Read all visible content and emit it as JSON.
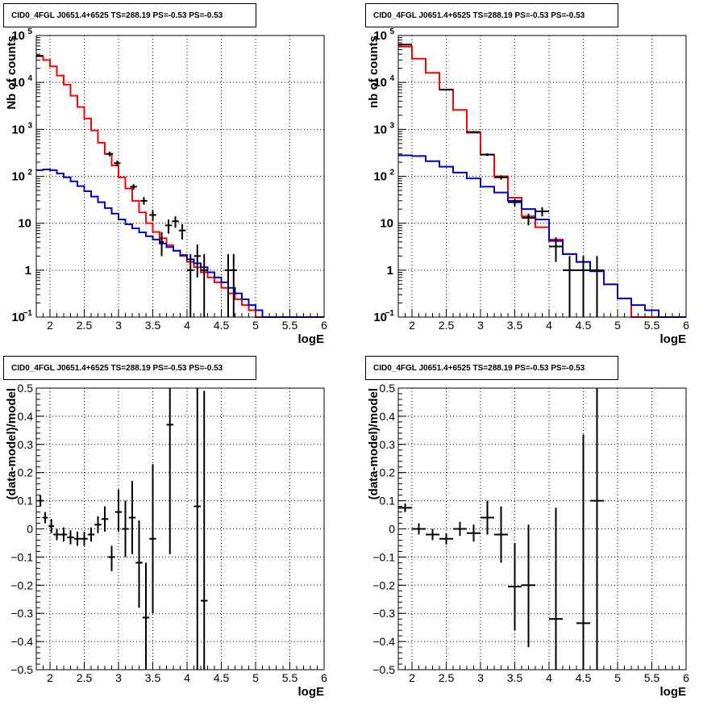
{
  "chart_data": [
    {
      "id": "tl",
      "type": "step-histogram",
      "title": "CID0_4FGL J0651.4+6525 TS=288.19 PS=-0.53 PS=-0.53",
      "xlabel": "logE",
      "ylabel": "Nb of counts",
      "xlim": [
        1.8,
        6.0
      ],
      "ylim": [
        0.1,
        100000
      ],
      "yscale": "log",
      "grid": true,
      "x_ticks": [
        "2",
        "2.5",
        "3",
        "3.5",
        "4",
        "4.5",
        "5",
        "5.5",
        "6"
      ],
      "y_ticks": [
        {
          "value": 0.1,
          "label": "10",
          "sup": "−1"
        },
        {
          "value": 1,
          "label": "1"
        },
        {
          "value": 10,
          "label": "10"
        },
        {
          "value": 100,
          "label": "10",
          "sup": "2"
        },
        {
          "value": 1000,
          "label": "10",
          "sup": "3"
        },
        {
          "value": 10000,
          "label": "10",
          "sup": "4"
        },
        {
          "value": 100000,
          "label": "10",
          "sup": "5"
        }
      ],
      "series": [
        {
          "color": "#ff0000",
          "style": "step",
          "edges": [
            1.8,
            1.9,
            2.0,
            2.1,
            2.2,
            2.3,
            2.4,
            2.5,
            2.6,
            2.7,
            2.8,
            2.9,
            3.0,
            3.1,
            3.2,
            3.3,
            3.4,
            3.5,
            3.6,
            3.7,
            3.8,
            3.9,
            4.0,
            4.1,
            4.2,
            4.3,
            4.4,
            4.5,
            4.6,
            4.7,
            4.8,
            4.9,
            5.0,
            5.1,
            5.2,
            5.3,
            5.4,
            5.5,
            5.6,
            5.7,
            5.8,
            5.9,
            6.0
          ],
          "values": [
            36000,
            30000,
            22000,
            14000,
            9000,
            5200,
            3000,
            1700,
            950,
            520,
            300,
            170,
            95,
            55,
            30,
            17,
            10,
            6.5,
            4.8,
            3.4,
            2.6,
            2.0,
            1.5,
            1.15,
            0.9,
            0.7,
            0.55,
            0.42,
            0.32,
            0.24,
            0.18,
            0.14,
            0.1,
            0.1,
            0.1,
            0.1,
            0.1,
            0.1,
            0.1,
            0.1,
            0.1,
            0.1
          ]
        },
        {
          "color": "#0000cc",
          "style": "step",
          "edges": [
            1.8,
            1.9,
            2.0,
            2.1,
            2.2,
            2.3,
            2.4,
            2.5,
            2.6,
            2.7,
            2.8,
            2.9,
            3.0,
            3.1,
            3.2,
            3.3,
            3.4,
            3.5,
            3.6,
            3.7,
            3.8,
            3.9,
            4.0,
            4.1,
            4.2,
            4.3,
            4.4,
            4.5,
            4.6,
            4.7,
            4.8,
            4.9,
            5.0,
            5.1,
            5.2,
            5.3,
            5.4,
            5.5,
            5.6,
            5.7,
            5.8,
            5.9,
            6.0
          ],
          "values": [
            135,
            140,
            135,
            115,
            95,
            78,
            62,
            48,
            37,
            28,
            21,
            16,
            12,
            9.5,
            7.8,
            6.4,
            5.3,
            4.5,
            3.7,
            3.1,
            2.6,
            2.1,
            1.7,
            1.4,
            1.15,
            0.9,
            0.7,
            0.55,
            0.42,
            0.32,
            0.24,
            0.18,
            0.14,
            0.1,
            0.1,
            0.1,
            0.1,
            0.1,
            0.1,
            0.1,
            0.1,
            0.1
          ]
        }
      ],
      "points": [
        {
          "x": 1.85,
          "y": 37000,
          "xerr": 0.05,
          "ylo": 36600,
          "yhi": 37400
        },
        {
          "x": 2.87,
          "y": 300,
          "xerr": 0.05,
          "ylo": 265,
          "yhi": 335
        },
        {
          "x": 2.98,
          "y": 190,
          "xerr": 0.05,
          "ylo": 165,
          "yhi": 215
        },
        {
          "x": 3.22,
          "y": 60,
          "xerr": 0.05,
          "ylo": 52,
          "yhi": 68
        },
        {
          "x": 3.37,
          "y": 30,
          "xerr": 0.05,
          "ylo": 25,
          "yhi": 36
        },
        {
          "x": 3.5,
          "y": 15,
          "xerr": 0.05,
          "ylo": 11,
          "yhi": 19
        },
        {
          "x": 3.63,
          "y": 4,
          "xerr": 0.03,
          "ylo": 2,
          "yhi": 6.5
        },
        {
          "x": 3.73,
          "y": 9,
          "xerr": 0.05,
          "ylo": 6,
          "yhi": 12
        },
        {
          "x": 3.83,
          "y": 11,
          "xerr": 0.05,
          "ylo": 8,
          "yhi": 14
        },
        {
          "x": 3.93,
          "y": 7,
          "xerr": 0.05,
          "ylo": 4.5,
          "yhi": 9.5
        },
        {
          "x": 4.05,
          "y": 1,
          "xerr": 0.05,
          "ylo": 0.1,
          "yhi": 2.2
        },
        {
          "x": 4.15,
          "y": 2,
          "xerr": 0.05,
          "ylo": 0.7,
          "yhi": 3.5
        },
        {
          "x": 4.25,
          "y": 1,
          "xerr": 0.05,
          "ylo": 0.1,
          "yhi": 2.2
        },
        {
          "x": 4.6,
          "y": 1,
          "xerr": 0.05,
          "ylo": 0.1,
          "yhi": 2.2
        },
        {
          "x": 4.68,
          "y": 1,
          "xerr": 0.05,
          "ylo": 0.1,
          "yhi": 2.2
        }
      ]
    },
    {
      "id": "tr",
      "type": "step-histogram",
      "title": "CID0_4FGL J0651.4+6525 TS=288.19 PS=-0.53 PS=-0.53",
      "xlabel": "logE",
      "ylabel": "nb of counts",
      "xlim": [
        1.8,
        6.0
      ],
      "ylim": [
        0.1,
        100000
      ],
      "yscale": "log",
      "grid": true,
      "x_ticks": [
        "2",
        "2.5",
        "3",
        "3.5",
        "4",
        "4.5",
        "5",
        "5.5",
        "6"
      ],
      "y_ticks": [
        {
          "value": 0.1,
          "label": "10",
          "sup": "−1"
        },
        {
          "value": 1,
          "label": "1"
        },
        {
          "value": 10,
          "label": "10"
        },
        {
          "value": 100,
          "label": "10",
          "sup": "2"
        },
        {
          "value": 1000,
          "label": "10",
          "sup": "3"
        },
        {
          "value": 10000,
          "label": "10",
          "sup": "4"
        },
        {
          "value": 100000,
          "label": "10",
          "sup": "5"
        }
      ],
      "series": [
        {
          "color": "#ff0000",
          "style": "step",
          "edges": [
            1.8,
            2.0,
            2.2,
            2.4,
            2.6,
            2.8,
            3.0,
            3.2,
            3.4,
            3.6,
            3.8,
            4.0,
            4.2,
            4.4,
            4.6,
            4.8,
            5.0,
            5.2,
            5.4,
            5.6,
            5.8,
            6.0
          ],
          "values": [
            58000,
            32000,
            16000,
            7000,
            2600,
            850,
            290,
            100,
            35,
            14,
            8.2,
            4.5,
            2.2,
            1.5,
            0.95,
            0.5,
            0.25,
            0.1,
            0.1,
            0.1,
            0.1
          ]
        },
        {
          "color": "#0000cc",
          "style": "step",
          "edges": [
            1.8,
            2.0,
            2.2,
            2.4,
            2.6,
            2.8,
            3.0,
            3.2,
            3.4,
            3.6,
            3.8,
            4.0,
            4.2,
            4.4,
            4.6,
            4.8,
            5.0,
            5.2,
            5.4,
            5.6,
            5.8,
            6.0
          ],
          "values": [
            280,
            270,
            210,
            160,
            120,
            90,
            60,
            45,
            30,
            20,
            12,
            4.2,
            2.2,
            1.5,
            0.95,
            0.5,
            0.25,
            0.18,
            0.14,
            0.1,
            0.1
          ]
        }
      ],
      "points": [
        {
          "x": 1.9,
          "y": 64000,
          "xerr": 0.1,
          "ylo": 63500,
          "yhi": 64500
        },
        {
          "x": 2.5,
          "y": 7000,
          "xerr": 0.1,
          "ylo": 6800,
          "yhi": 7200
        },
        {
          "x": 2.9,
          "y": 880,
          "xerr": 0.1,
          "ylo": 840,
          "yhi": 920
        },
        {
          "x": 3.1,
          "y": 290,
          "xerr": 0.1,
          "ylo": 270,
          "yhi": 310
        },
        {
          "x": 3.3,
          "y": 95,
          "xerr": 0.1,
          "ylo": 85,
          "yhi": 105
        },
        {
          "x": 3.5,
          "y": 28,
          "xerr": 0.1,
          "ylo": 23,
          "yhi": 33
        },
        {
          "x": 3.7,
          "y": 13,
          "xerr": 0.1,
          "ylo": 9,
          "yhi": 16
        },
        {
          "x": 3.9,
          "y": 18,
          "xerr": 0.1,
          "ylo": 14,
          "yhi": 22
        },
        {
          "x": 4.1,
          "y": 3.2,
          "xerr": 0.1,
          "ylo": 1.5,
          "yhi": 5
        },
        {
          "x": 4.5,
          "y": 1,
          "xerr": 0.1,
          "ylo": 0.1,
          "yhi": 2
        },
        {
          "x": 4.7,
          "y": 1,
          "xerr": 0.1,
          "ylo": 0.1,
          "yhi": 2
        },
        {
          "x": 4.3,
          "y": 1,
          "xerr": 0.1,
          "ylo": 0.1,
          "yhi": 2
        }
      ]
    },
    {
      "id": "bl",
      "type": "scatter-errorbars",
      "title": "CID0_4FGL J0651.4+6525 TS=288.19 PS=-0.53 PS=-0.53",
      "xlabel": "logE",
      "ylabel": "(data-model)/model",
      "xlim": [
        1.8,
        6.0
      ],
      "ylim": [
        -0.5,
        0.5
      ],
      "yscale": "linear",
      "grid": true,
      "x_ticks": [
        "2",
        "2.5",
        "3",
        "3.5",
        "4",
        "4.5",
        "5",
        "5.5",
        "6"
      ],
      "y_ticks": [
        "0.5",
        "0.4",
        "0.3",
        "0.2",
        "0.1",
        "0",
        "−0.1",
        "−0.2",
        "−0.3",
        "−0.4",
        "−0.5"
      ],
      "points": [
        {
          "x": 1.86,
          "y": 0.1,
          "xerr": 0.04,
          "ylo": 0.08,
          "yhi": 0.12
        },
        {
          "x": 1.93,
          "y": 0.04,
          "xerr": 0.04,
          "ylo": 0.02,
          "yhi": 0.06
        },
        {
          "x": 2.02,
          "y": 0.01,
          "xerr": 0.04,
          "ylo": -0.015,
          "yhi": 0.035
        },
        {
          "x": 2.1,
          "y": -0.02,
          "xerr": 0.05,
          "ylo": -0.04,
          "yhi": 0.0
        },
        {
          "x": 2.2,
          "y": -0.02,
          "xerr": 0.05,
          "ylo": -0.045,
          "yhi": 0.005
        },
        {
          "x": 2.3,
          "y": -0.03,
          "xerr": 0.05,
          "ylo": -0.055,
          "yhi": -0.005
        },
        {
          "x": 2.4,
          "y": -0.035,
          "xerr": 0.05,
          "ylo": -0.06,
          "yhi": -0.01
        },
        {
          "x": 2.5,
          "y": -0.035,
          "xerr": 0.05,
          "ylo": -0.06,
          "yhi": -0.01
        },
        {
          "x": 2.6,
          "y": -0.02,
          "xerr": 0.05,
          "ylo": -0.045,
          "yhi": 0.005
        },
        {
          "x": 2.7,
          "y": 0.015,
          "xerr": 0.05,
          "ylo": -0.015,
          "yhi": 0.045
        },
        {
          "x": 2.8,
          "y": 0.035,
          "xerr": 0.05,
          "ylo": -0.01,
          "yhi": 0.08
        },
        {
          "x": 2.9,
          "y": -0.1,
          "xerr": 0.05,
          "ylo": -0.15,
          "yhi": -0.06
        },
        {
          "x": 3.0,
          "y": 0.06,
          "xerr": 0.05,
          "ylo": -0.01,
          "yhi": 0.14
        },
        {
          "x": 3.1,
          "y": 0.0,
          "xerr": 0.05,
          "ylo": -0.1,
          "yhi": 0.1
        },
        {
          "x": 3.2,
          "y": 0.04,
          "xerr": 0.05,
          "ylo": -0.09,
          "yhi": 0.17
        },
        {
          "x": 3.3,
          "y": -0.12,
          "xerr": 0.05,
          "ylo": -0.28,
          "yhi": 0.03
        },
        {
          "x": 3.4,
          "y": -0.315,
          "xerr": 0.05,
          "ylo": -0.5,
          "yhi": -0.12
        },
        {
          "x": 3.5,
          "y": -0.035,
          "xerr": 0.05,
          "ylo": -0.3,
          "yhi": 0.23
        },
        {
          "x": 3.75,
          "y": 0.37,
          "xerr": 0.05,
          "ylo": -0.09,
          "yhi": 0.5
        },
        {
          "x": 4.15,
          "y": 0.08,
          "xerr": 0.05,
          "ylo": -0.5,
          "yhi": 0.5
        },
        {
          "x": 4.25,
          "y": -0.255,
          "xerr": 0.05,
          "ylo": -0.5,
          "yhi": 0.49
        }
      ]
    },
    {
      "id": "br",
      "type": "scatter-errorbars",
      "title": "CID0_4FGL J0651.4+6525 TS=288.19 PS=-0.53 PS=-0.53",
      "xlabel": "logE",
      "ylabel": "(data-model)/model",
      "xlim": [
        1.8,
        6.0
      ],
      "ylim": [
        -0.5,
        0.5
      ],
      "yscale": "linear",
      "grid": true,
      "x_ticks": [
        "2",
        "2.5",
        "3",
        "3.5",
        "4",
        "4.5",
        "5",
        "5.5",
        "6"
      ],
      "y_ticks": [
        "0.5",
        "0.4",
        "0.3",
        "0.2",
        "0.1",
        "0",
        "−0.1",
        "−0.2",
        "−0.3",
        "−0.4",
        "−0.5"
      ],
      "points": [
        {
          "x": 1.9,
          "y": 0.075,
          "xerr": 0.1,
          "ylo": 0.06,
          "yhi": 0.09
        },
        {
          "x": 2.1,
          "y": 0.0,
          "xerr": 0.1,
          "ylo": -0.02,
          "yhi": 0.02
        },
        {
          "x": 2.3,
          "y": -0.02,
          "xerr": 0.1,
          "ylo": -0.04,
          "yhi": 0.0
        },
        {
          "x": 2.5,
          "y": -0.035,
          "xerr": 0.1,
          "ylo": -0.055,
          "yhi": -0.015
        },
        {
          "x": 2.7,
          "y": 0.0,
          "xerr": 0.1,
          "ylo": -0.025,
          "yhi": 0.025
        },
        {
          "x": 2.9,
          "y": -0.015,
          "xerr": 0.1,
          "ylo": -0.045,
          "yhi": 0.015
        },
        {
          "x": 3.1,
          "y": 0.04,
          "xerr": 0.1,
          "ylo": -0.02,
          "yhi": 0.1
        },
        {
          "x": 3.3,
          "y": -0.02,
          "xerr": 0.1,
          "ylo": -0.12,
          "yhi": 0.08
        },
        {
          "x": 3.5,
          "y": -0.205,
          "xerr": 0.1,
          "ylo": -0.36,
          "yhi": -0.05
        },
        {
          "x": 3.7,
          "y": -0.2,
          "xerr": 0.1,
          "ylo": -0.42,
          "yhi": 0.015
        },
        {
          "x": 4.1,
          "y": -0.32,
          "xerr": 0.1,
          "ylo": -0.5,
          "yhi": 0.075
        },
        {
          "x": 4.5,
          "y": -0.335,
          "xerr": 0.1,
          "ylo": -0.5,
          "yhi": 0.335
        },
        {
          "x": 4.7,
          "y": 0.1,
          "xerr": 0.1,
          "ylo": -0.5,
          "yhi": 0.5
        }
      ]
    }
  ]
}
